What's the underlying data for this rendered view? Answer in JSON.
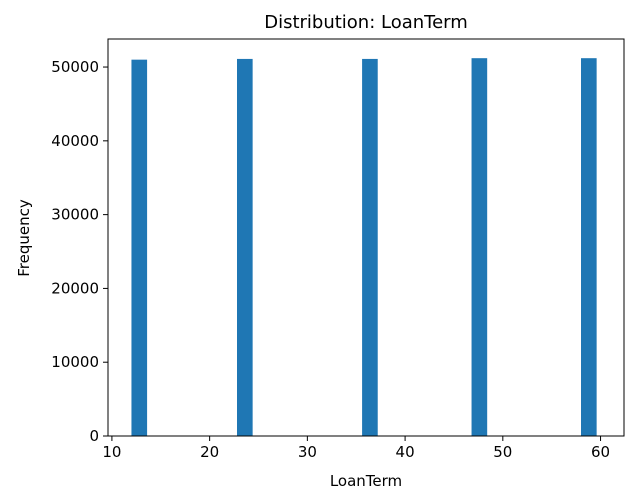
{
  "chart_data": {
    "type": "bar",
    "title": "Distribution: LoanTerm",
    "xlabel": "LoanTerm",
    "ylabel": "Frequency",
    "xlim": [
      9.6,
      62.4
    ],
    "ylim": [
      0,
      53800
    ],
    "xticks": [
      10,
      20,
      30,
      40,
      50,
      60
    ],
    "yticks": [
      0,
      10000,
      20000,
      30000,
      40000,
      50000
    ],
    "bin_width": 1.6,
    "bars": [
      {
        "x_start": 12.0,
        "x_end": 13.6,
        "value": 51000
      },
      {
        "x_start": 22.8,
        "x_end": 24.4,
        "value": 51100
      },
      {
        "x_start": 35.6,
        "x_end": 37.2,
        "value": 51100
      },
      {
        "x_start": 46.8,
        "x_end": 48.4,
        "value": 51200
      },
      {
        "x_start": 58.0,
        "x_end": 59.6,
        "value": 51200
      }
    ],
    "bar_color": "#1f77b4",
    "grid": false,
    "legend": "none"
  }
}
